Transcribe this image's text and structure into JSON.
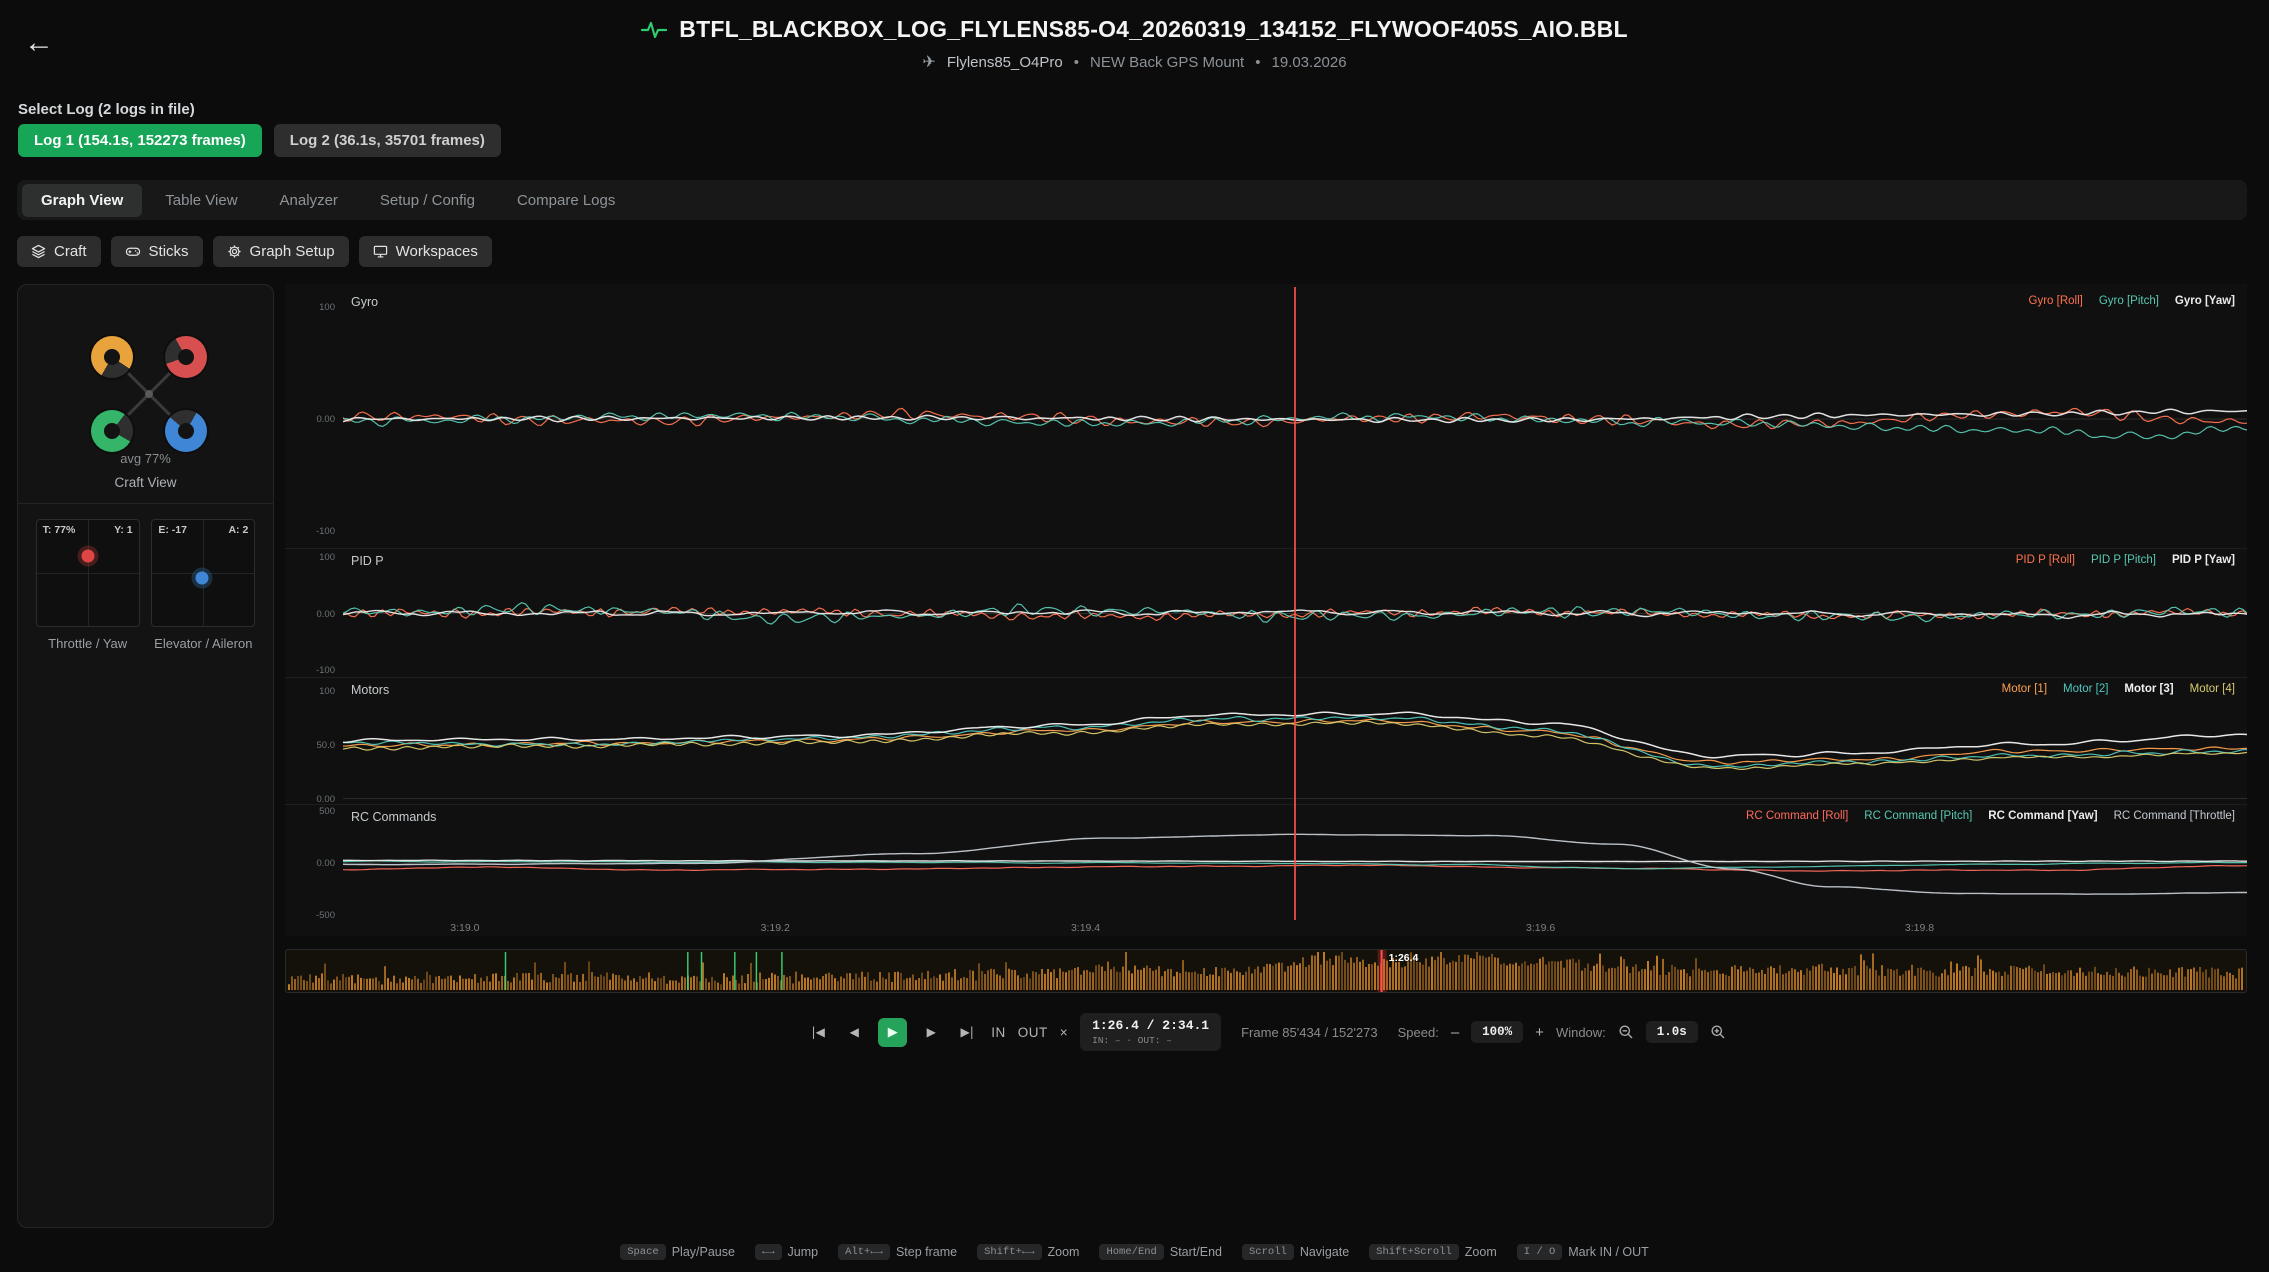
{
  "header": {
    "back_icon": "←",
    "title": "BTFL_BLACKBOX_LOG_FLYLENS85-O4_20260319_134152_FLYWOOF405S_AIO.BBL",
    "craft_icon": "✈",
    "craft_name": "Flylens85_O4Pro",
    "bullet": "•",
    "gps_note": "NEW Back GPS Mount",
    "date": "19.03.2026",
    "accent_green": "#2ecc71"
  },
  "log_select": {
    "label": "Select Log (2 logs in file)",
    "logs": [
      {
        "label": "Log 1 (154.1s, 152273 frames)",
        "active": true
      },
      {
        "label": "Log 2 (36.1s, 35701 frames)",
        "active": false
      }
    ]
  },
  "tabs": [
    {
      "label": "Graph View",
      "active": true
    },
    {
      "label": "Table View"
    },
    {
      "label": "Analyzer"
    },
    {
      "label": "Setup / Config"
    },
    {
      "label": "Compare Logs"
    }
  ],
  "toolbar": [
    {
      "label": "Craft",
      "icon": "layers-icon"
    },
    {
      "label": "Sticks",
      "icon": "gamepad-icon"
    },
    {
      "label": "Graph Setup",
      "icon": "gear-icon"
    },
    {
      "label": "Workspaces",
      "icon": "monitor-icon"
    }
  ],
  "sidebar": {
    "avg_label": "avg 77%",
    "craft_caption": "Craft View",
    "motor_donuts": [
      {
        "pos": "tl",
        "color": "#e8a33d",
        "pct": 76,
        "from": 210
      },
      {
        "pos": "tr",
        "color": "#d84f4f",
        "pct": 78,
        "from": 330
      },
      {
        "pos": "bl",
        "color": "#35b56a",
        "pct": 77,
        "from": 120
      },
      {
        "pos": "br",
        "color": "#3f87d6",
        "pct": 78,
        "from": 30
      }
    ],
    "sticks": [
      {
        "left_label": "T: 77%",
        "right_label": "Y: 1",
        "caption": "Throttle / Yaw",
        "dot_color": "#e04545",
        "dot_x": 50,
        "dot_y": 34
      },
      {
        "left_label": "E: -17",
        "right_label": "A: 2",
        "caption": "Elevator / Aileron",
        "dot_color": "#3f87d6",
        "dot_x": 49,
        "dot_y": 55
      }
    ]
  },
  "chart_data": {
    "type": "line",
    "cursor_frac": 0.5,
    "x_ticks": [
      {
        "f": 0.064,
        "label": "3:19.0"
      },
      {
        "f": 0.227,
        "label": "3:19.2"
      },
      {
        "f": 0.39,
        "label": "3:19.4"
      },
      {
        "f": 0.629,
        "label": "3:19.6"
      },
      {
        "f": 0.828,
        "label": "3:19.8"
      }
    ],
    "panels": [
      {
        "title": "Gyro",
        "ymin": -115,
        "ymax": 115,
        "y_ticks": [
          {
            "v": 100,
            "label": "100"
          },
          {
            "v": 0,
            "label": "0.00"
          },
          {
            "v": -100,
            "label": "-100"
          }
        ],
        "legend": [
          {
            "label": "Gyro [Roll]",
            "color": "#ff7350"
          },
          {
            "label": "Gyro [Pitch]",
            "color": "#58c9b4"
          },
          {
            "label": "Gyro [Yaw]",
            "color": "#ececec",
            "bold": true
          }
        ],
        "series": [
          {
            "color": "#ff7350",
            "noise": 7,
            "fmax": 110,
            "seed": 11,
            "keys": [
              [
                0,
                3
              ],
              [
                0.15,
                -2
              ],
              [
                0.3,
                4
              ],
              [
                0.45,
                -3
              ],
              [
                0.6,
                2
              ],
              [
                0.75,
                -5
              ],
              [
                0.9,
                6
              ],
              [
                1,
                -3
              ]
            ]
          },
          {
            "color": "#58c9b4",
            "noise": 6,
            "fmax": 110,
            "seed": 22,
            "keys": [
              [
                0,
                -2
              ],
              [
                0.2,
                3
              ],
              [
                0.4,
                -4
              ],
              [
                0.55,
                2
              ],
              [
                0.7,
                -3
              ],
              [
                0.88,
                -10
              ],
              [
                0.95,
                -16
              ],
              [
                1,
                -7
              ]
            ]
          },
          {
            "color": "#ececec",
            "w": 1.5,
            "noise": 3.5,
            "fmax": 90,
            "seed": 33,
            "keys": [
              [
                0,
                0
              ],
              [
                0.3,
                1
              ],
              [
                0.6,
                -1
              ],
              [
                0.85,
                4
              ],
              [
                1,
                7
              ]
            ]
          }
        ]
      },
      {
        "title": "PID P",
        "ymin": -115,
        "ymax": 115,
        "y_ticks": [
          {
            "v": 100,
            "label": "100"
          },
          {
            "v": 0,
            "label": "0.00"
          },
          {
            "v": -100,
            "label": "-100"
          }
        ],
        "legend": [
          {
            "label": "PID P [Roll]",
            "color": "#ff7350"
          },
          {
            "label": "PID P [Pitch]",
            "color": "#58c9b4"
          },
          {
            "label": "PID P [Yaw]",
            "color": "#ececec",
            "bold": true
          }
        ],
        "series": [
          {
            "color": "#ff7350",
            "noise": 13,
            "fmax": 120,
            "seed": 44,
            "keys": [
              [
                0,
                0
              ],
              [
                0.2,
                4
              ],
              [
                0.4,
                -5
              ],
              [
                0.6,
                3
              ],
              [
                0.8,
                -4
              ],
              [
                1,
                2
              ]
            ]
          },
          {
            "color": "#58c9b4",
            "noise": 15,
            "fmax": 120,
            "seed": 55,
            "keys": [
              [
                0,
                2
              ],
              [
                0.12,
                8
              ],
              [
                0.24,
                -9
              ],
              [
                0.38,
                6
              ],
              [
                0.52,
                -5
              ],
              [
                0.66,
                4
              ],
              [
                0.8,
                -6
              ],
              [
                1,
                3
              ]
            ]
          },
          {
            "color": "#ececec",
            "w": 1.4,
            "noise": 8,
            "fmax": 100,
            "seed": 66,
            "keys": [
              [
                0,
                0
              ],
              [
                0.5,
                2
              ],
              [
                1,
                -2
              ]
            ]
          }
        ]
      },
      {
        "title": "Motors",
        "ymin": -6,
        "ymax": 112,
        "y_ticks": [
          {
            "v": 100,
            "label": "100"
          },
          {
            "v": 50,
            "label": "50.0"
          },
          {
            "v": 0,
            "label": "0.00"
          }
        ],
        "legend": [
          {
            "label": "Motor [1]",
            "color": "#ffa14f"
          },
          {
            "label": "Motor [2]",
            "color": "#4fc8bf"
          },
          {
            "label": "Motor [3]",
            "color": "#f2f2f2",
            "bold": true
          },
          {
            "label": "Motor [4]",
            "color": "#d9cb6d"
          }
        ],
        "series": [
          {
            "color": "#ffa14f",
            "noise": 3,
            "fmax": 70,
            "seed": 77,
            "keys": [
              [
                0,
                49
              ],
              [
                0.12,
                51
              ],
              [
                0.25,
                54
              ],
              [
                0.38,
                63
              ],
              [
                0.46,
                71
              ],
              [
                0.55,
                72
              ],
              [
                0.63,
                62
              ],
              [
                0.72,
                34
              ],
              [
                0.79,
                36
              ],
              [
                0.88,
                44
              ],
              [
                1,
                47
              ]
            ]
          },
          {
            "color": "#4fc8bf",
            "noise": 3,
            "fmax": 70,
            "seed": 88,
            "keys": [
              [
                0,
                52
              ],
              [
                0.12,
                50
              ],
              [
                0.25,
                56
              ],
              [
                0.38,
                66
              ],
              [
                0.46,
                74
              ],
              [
                0.55,
                75
              ],
              [
                0.63,
                64
              ],
              [
                0.72,
                30
              ],
              [
                0.79,
                34
              ],
              [
                0.88,
                40
              ],
              [
                1,
                44
              ]
            ]
          },
          {
            "color": "#f2f2f2",
            "w": 1.5,
            "noise": 3,
            "fmax": 70,
            "seed": 99,
            "keys": [
              [
                0,
                54
              ],
              [
                0.12,
                55
              ],
              [
                0.25,
                58
              ],
              [
                0.38,
                68
              ],
              [
                0.46,
                78
              ],
              [
                0.55,
                79
              ],
              [
                0.63,
                70
              ],
              [
                0.72,
                40
              ],
              [
                0.79,
                42
              ],
              [
                0.88,
                50
              ],
              [
                1,
                60
              ]
            ]
          },
          {
            "color": "#d9cb6d",
            "noise": 3,
            "fmax": 70,
            "seed": 111,
            "keys": [
              [
                0,
                47
              ],
              [
                0.12,
                49
              ],
              [
                0.25,
                52
              ],
              [
                0.38,
                61
              ],
              [
                0.46,
                69
              ],
              [
                0.55,
                70
              ],
              [
                0.63,
                58
              ],
              [
                0.72,
                28
              ],
              [
                0.79,
                32
              ],
              [
                0.88,
                38
              ],
              [
                1,
                42
              ]
            ]
          }
        ]
      },
      {
        "title": "RC Commands",
        "ymin": -560,
        "ymax": 560,
        "y_ticks": [
          {
            "v": 500,
            "label": "500"
          },
          {
            "v": 0,
            "label": "0.00"
          },
          {
            "v": -500,
            "label": "-500"
          }
        ],
        "legend": [
          {
            "label": "RC Command [Roll]",
            "color": "#ff6a5e"
          },
          {
            "label": "RC Command [Pitch]",
            "color": "#58c9b4"
          },
          {
            "label": "RC Command [Yaw]",
            "color": "#ececec",
            "bold": true
          },
          {
            "label": "RC Command [Throttle]",
            "color": "#c6cbd2"
          }
        ],
        "series": [
          {
            "color": "#ff6a5e",
            "noise": 10,
            "fmax": 60,
            "seed": 121,
            "keys": [
              [
                0,
                -65
              ],
              [
                0.08,
                -40
              ],
              [
                0.18,
                -70
              ],
              [
                0.3,
                -55
              ],
              [
                0.45,
                -30
              ],
              [
                0.55,
                -25
              ],
              [
                0.68,
                -55
              ],
              [
                0.78,
                -75
              ],
              [
                0.88,
                -70
              ],
              [
                1,
                -30
              ]
            ]
          },
          {
            "color": "#58c9b4",
            "noise": 8,
            "fmax": 60,
            "seed": 131,
            "keys": [
              [
                0,
                15
              ],
              [
                0.25,
                8
              ],
              [
                0.45,
                0
              ],
              [
                0.58,
                -15
              ],
              [
                0.68,
                -55
              ],
              [
                0.76,
                -35
              ],
              [
                0.88,
                -10
              ],
              [
                1,
                5
              ]
            ]
          },
          {
            "color": "#ececec",
            "w": 1.4,
            "noise": 4,
            "fmax": 50,
            "seed": 141,
            "keys": [
              [
                0,
                25
              ],
              [
                0.3,
                20
              ],
              [
                0.6,
                15
              ],
              [
                1,
                18
              ]
            ]
          },
          {
            "color": "#c6cbd2",
            "w": 1.4,
            "noise": 4,
            "fmax": 50,
            "seed": 151,
            "keys": [
              [
                0,
                -15
              ],
              [
                0.18,
                -5
              ],
              [
                0.3,
                90
              ],
              [
                0.4,
                240
              ],
              [
                0.5,
                275
              ],
              [
                0.6,
                265
              ],
              [
                0.67,
                180
              ],
              [
                0.73,
                -60
              ],
              [
                0.78,
                -230
              ],
              [
                0.85,
                -295
              ],
              [
                0.93,
                -300
              ],
              [
                1,
                -285
              ]
            ]
          }
        ]
      }
    ]
  },
  "timeline": {
    "marker_label": "1:26.4",
    "playhead_frac": 0.559,
    "green_markers": [
      0.112,
      0.205,
      0.212,
      0.229,
      0.24,
      0.253
    ],
    "bar_color": "#c27c25",
    "green_color": "#3ddc7a",
    "red_color": "#ff5050",
    "profile": [
      [
        0,
        0.3
      ],
      [
        0.08,
        0.28
      ],
      [
        0.15,
        0.34
      ],
      [
        0.22,
        0.3
      ],
      [
        0.3,
        0.34
      ],
      [
        0.38,
        0.42
      ],
      [
        0.42,
        0.6
      ],
      [
        0.46,
        0.45
      ],
      [
        0.5,
        0.55
      ],
      [
        0.53,
        0.8
      ],
      [
        0.57,
        0.7
      ],
      [
        0.6,
        0.85
      ],
      [
        0.64,
        0.75
      ],
      [
        0.68,
        0.55
      ],
      [
        0.72,
        0.5
      ],
      [
        0.78,
        0.55
      ],
      [
        0.84,
        0.48
      ],
      [
        0.9,
        0.52
      ],
      [
        1,
        0.45
      ]
    ]
  },
  "controls": {
    "transport": [
      {
        "name": "skip-start",
        "glyph": "|◀"
      },
      {
        "name": "step-back",
        "glyph": "◀"
      },
      {
        "name": "play",
        "glyph": "▶"
      },
      {
        "name": "step-forward",
        "glyph": "▶"
      },
      {
        "name": "skip-end",
        "glyph": "▶|"
      }
    ],
    "in_label": "IN",
    "out_label": "OUT",
    "clear_label": "×",
    "time": "1:26.4 / 2:34.1",
    "inout": "IN: – · OUT: –",
    "frame": "Frame 85'434 / 152'273",
    "speed_label": "Speed:",
    "speed_minus": "–",
    "speed_value": "100%",
    "speed_plus": "+",
    "window_label": "Window:",
    "window_value": "1.0s"
  },
  "help": [
    {
      "key": "Space",
      "label": "Play/Pause"
    },
    {
      "key": "←→",
      "label": "Jump"
    },
    {
      "key": "Alt+←→",
      "label": "Step frame"
    },
    {
      "key": "Shift+←→",
      "label": "Zoom"
    },
    {
      "key": "Home/End",
      "label": "Start/End"
    },
    {
      "key": "Scroll",
      "label": "Navigate"
    },
    {
      "key": "Shift+Scroll",
      "label": "Zoom"
    },
    {
      "key": "I / O",
      "label": "Mark IN / OUT"
    }
  ]
}
